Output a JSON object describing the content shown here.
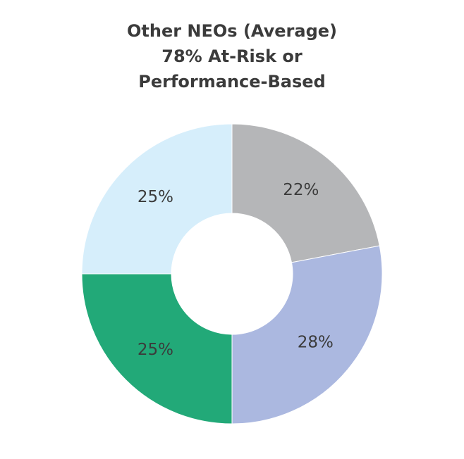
{
  "chart_data": {
    "type": "pie",
    "donut": true,
    "title": [
      "Other NEOs (Average)",
      "78% At-Risk or",
      "Performance-Based"
    ],
    "categories": [
      "",
      "",
      "",
      ""
    ],
    "values": [
      22,
      28,
      25,
      25
    ],
    "labels": [
      "22%",
      "28%",
      "25%",
      "25%"
    ],
    "colors": [
      "#b5b6b8",
      "#abb8e0",
      "#22a978",
      "#d6eefb"
    ]
  }
}
